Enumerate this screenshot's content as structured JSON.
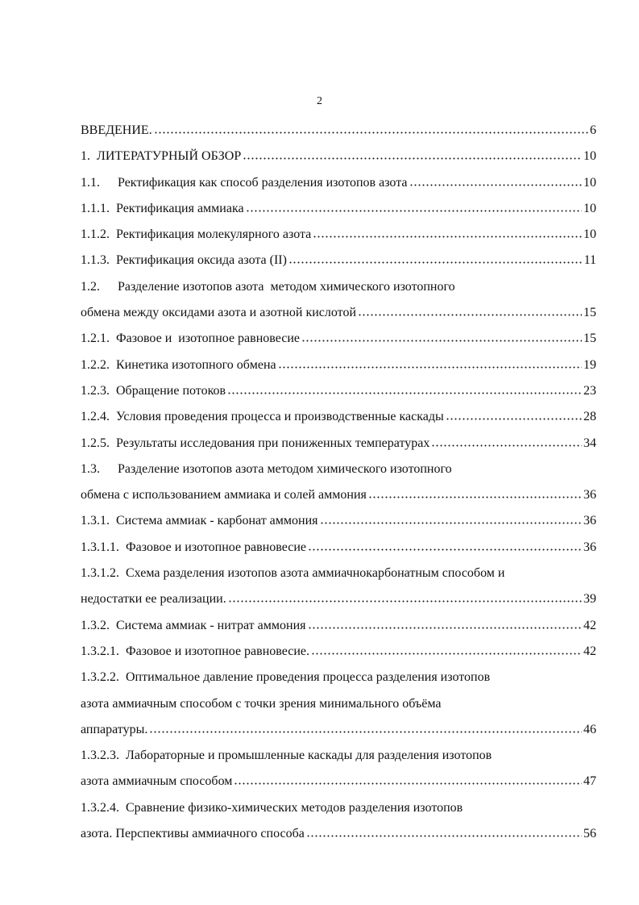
{
  "page_number": "2",
  "entries": [
    {
      "number": null,
      "lines": [
        "ВВЕДЕНИЕ."
      ],
      "page": "6"
    },
    {
      "number": "1.",
      "lines": [
        "ЛИТЕРАТУРНЫЙ ОБЗОР"
      ],
      "page": "10"
    },
    {
      "number": "1.1.",
      "lines": [
        "Ректификация как способ разделения изотопов азота"
      ],
      "page": "10"
    },
    {
      "number": "1.1.1.",
      "lines": [
        "Ректификация аммиака"
      ],
      "page": "10"
    },
    {
      "number": "1.1.2.",
      "lines": [
        "Ректификация молекулярного азота"
      ],
      "page": "10"
    },
    {
      "number": "1.1.3.",
      "lines": [
        "Ректификация оксида азота (II)"
      ],
      "page": "11"
    },
    {
      "number": "1.2.",
      "lines": [
        "Разделение изотопов азота  методом химического изотопного",
        "обмена между оксидами азота и азотной кислотой"
      ],
      "page": "15"
    },
    {
      "number": "1.2.1.",
      "lines": [
        "Фазовое и  изотопное равновесие"
      ],
      "page": "15"
    },
    {
      "number": "1.2.2.",
      "lines": [
        "Кинетика изотопного обмена"
      ],
      "page": "19"
    },
    {
      "number": "1.2.3.",
      "lines": [
        "Обращение потоков"
      ],
      "page": "23"
    },
    {
      "number": "1.2.4.",
      "lines": [
        "Условия проведения процесса и производственные каскады"
      ],
      "page": "28"
    },
    {
      "number": "1.2.5.",
      "lines": [
        "Результаты исследования при пониженных температурах"
      ],
      "page": "34"
    },
    {
      "number": "1.3.",
      "lines": [
        "Разделение изотопов азота методом химического изотопного",
        "обмена с использованием аммиака и солей аммония"
      ],
      "page": "36"
    },
    {
      "number": "1.3.1.",
      "lines": [
        "Система аммиак - карбонат аммония"
      ],
      "page": "36"
    },
    {
      "number": "1.3.1.1.",
      "lines": [
        "Фазовое и изотопное равновесие"
      ],
      "page": "36"
    },
    {
      "number": "1.3.1.2.",
      "lines": [
        "Схема разделения изотопов азота аммиачнокарбонатным способом и",
        "недостатки ее реализации."
      ],
      "page": "39"
    },
    {
      "number": "1.3.2.",
      "lines": [
        "Система аммиак - нитрат аммония"
      ],
      "page": "42"
    },
    {
      "number": "1.3.2.1.",
      "lines": [
        "Фазовое и изотопное равновесие."
      ],
      "page": "42"
    },
    {
      "number": "1.3.2.2.",
      "lines": [
        "Оптимальное давление проведения процесса разделения изотопов",
        "азота аммиачным способом с точки зрения минимального объёма",
        "аппаратуры."
      ],
      "page": "46"
    },
    {
      "number": "1.3.2.3.",
      "lines": [
        "Лабораторные и промышленные каскады для разделения изотопов",
        "азота аммиачным способом"
      ],
      "page": "47"
    },
    {
      "number": "1.3.2.4.",
      "lines": [
        "Сравнение физико-химических методов разделения изотопов",
        "азота. Перспективы аммиачного способа"
      ],
      "page": "56"
    }
  ]
}
